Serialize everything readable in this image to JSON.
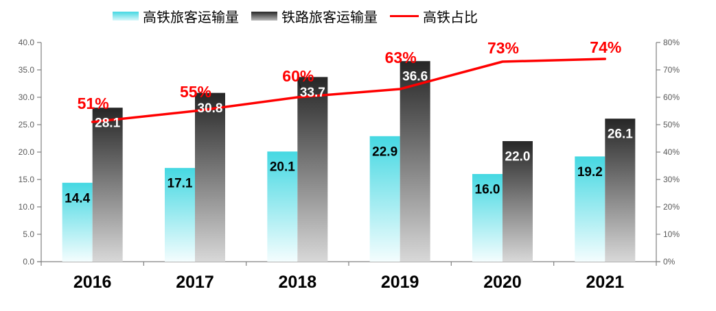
{
  "legend": {
    "items": [
      {
        "label": "高铁旅客运输量",
        "swatch": "hsr-gradient-bar"
      },
      {
        "label": "铁路旅客运输量",
        "swatch": "rail-gradient-bar"
      },
      {
        "label": "高铁占比",
        "swatch": "red-line"
      }
    ]
  },
  "colors": {
    "hsr_bar_top": "#45d8e2",
    "hsr_bar_bottom": "#f4fdfe",
    "rail_bar_top": "#262626",
    "rail_bar_bottom": "#d8d8d8",
    "line_red": "#ff0000",
    "axis_line": "#7f7f7f",
    "tick_label": "#595959",
    "hsr_value_label": "#000000",
    "rail_value_label": "#ffffff",
    "year_label": "#000000"
  },
  "chart_data": {
    "type": "bar",
    "subtype": "grouped-bars-with-percentage-line",
    "categories": [
      "2016",
      "2017",
      "2018",
      "2019",
      "2020",
      "2021"
    ],
    "series": [
      {
        "name": "高铁旅客运输量",
        "chart": "bar",
        "axis": "left",
        "values": [
          14.4,
          17.1,
          20.1,
          22.9,
          16.0,
          19.2
        ],
        "labels": [
          "14.4",
          "17.1",
          "20.1",
          "22.9",
          "16.0",
          "19.2"
        ]
      },
      {
        "name": "铁路旅客运输量",
        "chart": "bar",
        "axis": "left",
        "values": [
          28.1,
          30.8,
          33.7,
          36.6,
          22.0,
          26.1
        ],
        "labels": [
          "28.1",
          "30.8",
          "33.7",
          "36.6",
          "22.0",
          "26.1"
        ]
      },
      {
        "name": "高铁占比",
        "chart": "line",
        "axis": "right",
        "values": [
          51,
          55,
          60,
          63,
          73,
          74
        ],
        "labels": [
          "51%",
          "55%",
          "60%",
          "63%",
          "73%",
          "74%"
        ]
      }
    ],
    "left_axis": {
      "min": 0,
      "max": 40,
      "step": 5,
      "tick_labels": [
        "0.0",
        "5.0",
        "10.0",
        "15.0",
        "20.0",
        "25.0",
        "30.0",
        "35.0",
        "40.0"
      ]
    },
    "right_axis": {
      "min": 0,
      "max": 80,
      "step": 10,
      "tick_labels": [
        "0%",
        "10%",
        "20%",
        "30%",
        "40%",
        "50%",
        "60%",
        "70%",
        "80%"
      ]
    },
    "grid": false,
    "legend_position": "top"
  }
}
